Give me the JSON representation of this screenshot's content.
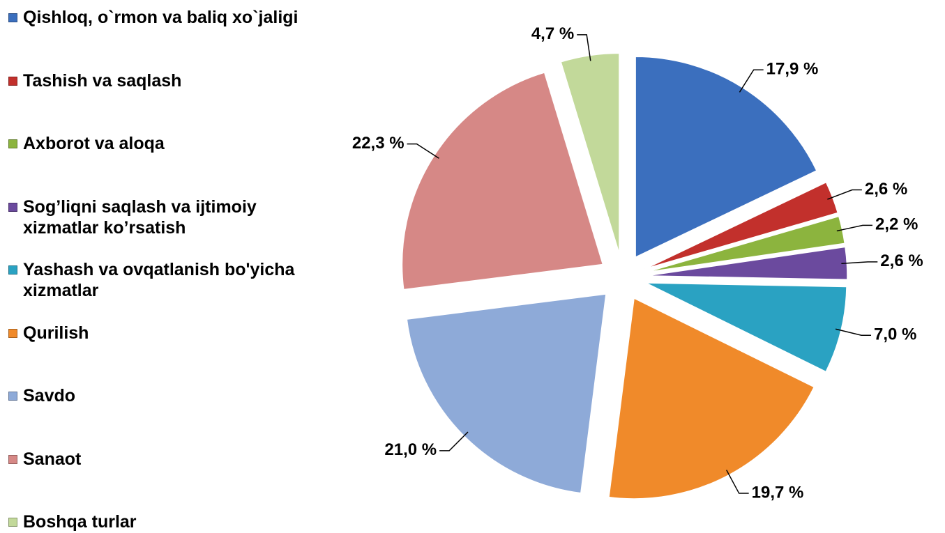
{
  "chart_data": {
    "type": "pie",
    "categories": [
      "Qishloq, o`rmon va baliq xo`jaligi",
      "Tashish va saqlash",
      "Axborot va aloqa",
      "Sog’liqni saqlash va ijtimoiy xizmatlar ko’rsatish",
      "Yashash va ovqatlanish bo'yicha xizmatlar",
      "Qurilish",
      "Savdo",
      "Sanaot",
      "Boshqa  turlar"
    ],
    "values": [
      17.9,
      2.6,
      2.2,
      2.6,
      7.0,
      19.7,
      21.0,
      22.3,
      4.7
    ],
    "value_labels": [
      "17,9 %",
      "2,6 %",
      "2,2 %",
      "2,6 %",
      "7,0 %",
      "19,7 %",
      "21,0 %",
      "22,3  %",
      "4,7 %"
    ],
    "colors": [
      "#3b6fbe",
      "#c2302c",
      "#8cb43e",
      "#6b4a9e",
      "#2aa2c2",
      "#f08a2a",
      "#8eaad8",
      "#d68886",
      "#c2d99a"
    ],
    "legend": "left"
  }
}
